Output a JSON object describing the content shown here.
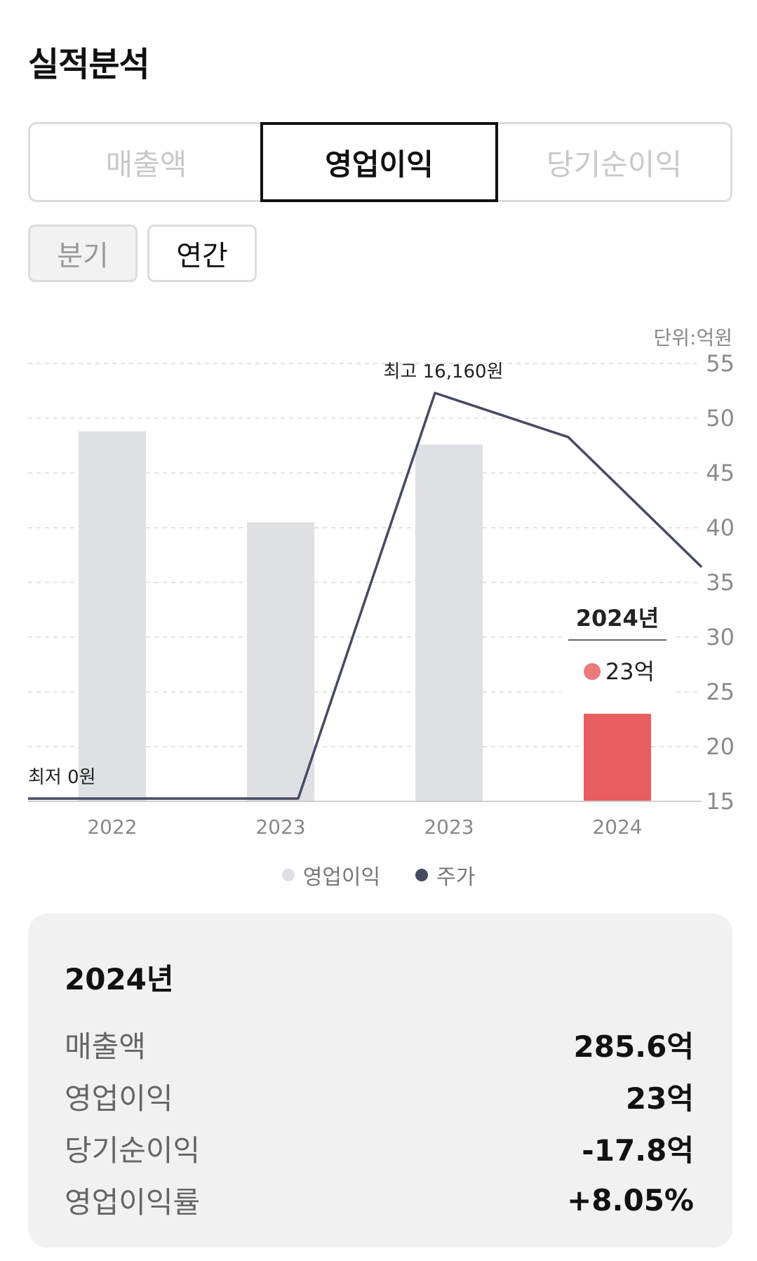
{
  "header": {
    "title": "실적분석"
  },
  "tabs": [
    {
      "label": "매출액",
      "active": false
    },
    {
      "label": "영업이익",
      "active": true
    },
    {
      "label": "당기순이익",
      "active": false
    }
  ],
  "period": [
    {
      "label": "분기",
      "active": false
    },
    {
      "label": "연간",
      "active": true
    }
  ],
  "unit": "단위:억원",
  "chart_data": {
    "type": "bar",
    "categories": [
      "2022",
      "2023",
      "2023",
      "2024"
    ],
    "series": [
      {
        "name": "영업이익",
        "kind": "bar",
        "values": [
          48.8,
          40.5,
          47.6,
          23
        ],
        "color": "#dfe0e4",
        "highlight_color": "#e85d5f",
        "highlight_index": 3
      },
      {
        "name": "주가",
        "kind": "line",
        "values": [
          0,
          0,
          16160,
          14400
        ],
        "color": "#464a61"
      }
    ],
    "y_ticks": [
      15,
      20,
      25,
      30,
      35,
      40,
      45,
      50,
      55
    ],
    "ylim": [
      15,
      55
    ],
    "grid": true,
    "annotations": {
      "high": "최고 16,160원",
      "low": "최저 0원"
    },
    "tooltip": {
      "title": "2024년",
      "value": "23억",
      "color": "#e97b7d"
    }
  },
  "legend": [
    {
      "label": "영업이익",
      "color": "#dfe0e4"
    },
    {
      "label": "주가",
      "color": "#464a61"
    }
  ],
  "summary": {
    "year": "2024년",
    "rows": [
      {
        "label": "매출액",
        "value": "285.6억"
      },
      {
        "label": "영업이익",
        "value": "23억"
      },
      {
        "label": "당기순이익",
        "value": "-17.8억"
      },
      {
        "label": "영업이익률",
        "value": "+8.05%"
      }
    ]
  }
}
